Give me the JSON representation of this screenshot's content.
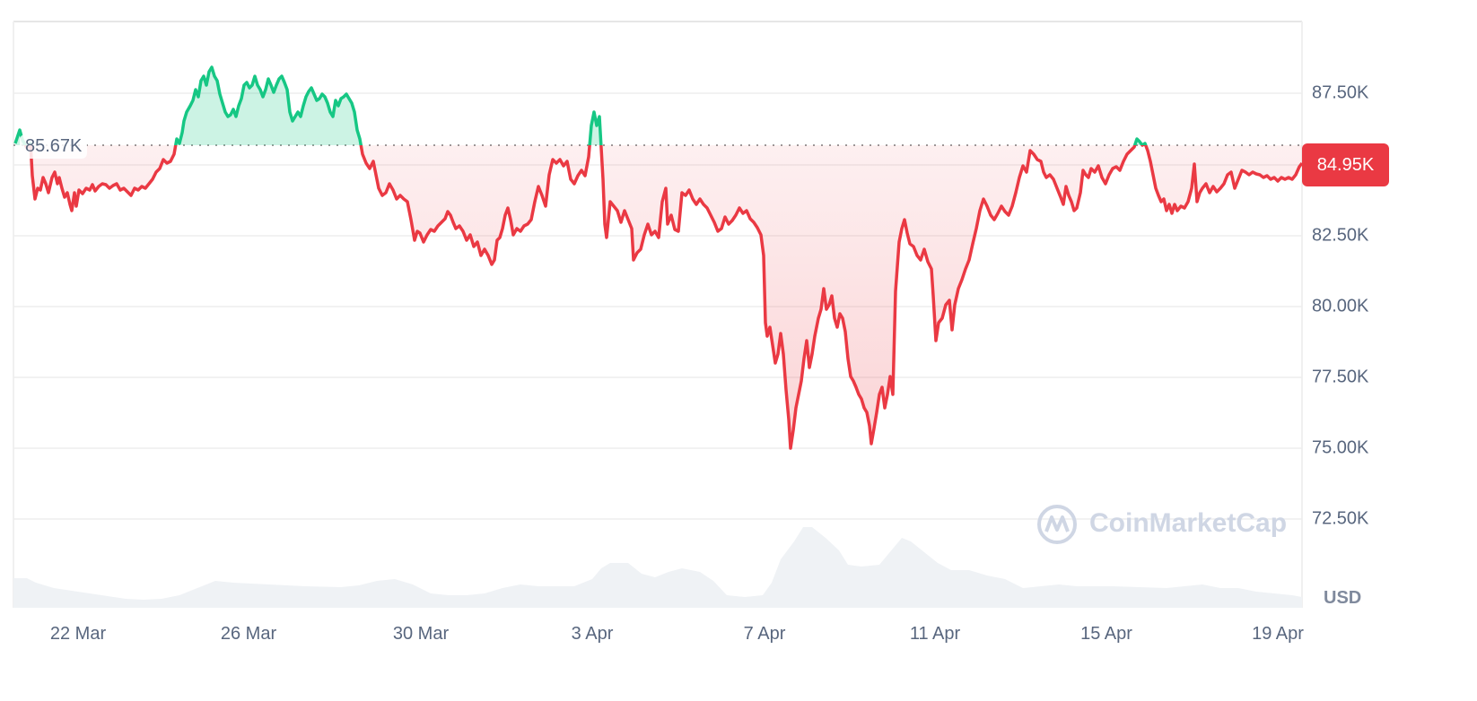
{
  "chart_data": {
    "type": "line",
    "title": "",
    "xlabel": "",
    "ylabel": "USD",
    "currency": "USD",
    "ylim": [
      71000,
      89500
    ],
    "y_ticks": [
      "87.50K",
      "82.50K",
      "80.00K",
      "77.50K",
      "75.00K",
      "72.50K"
    ],
    "x_ticks": [
      "22 Mar",
      "26 Mar",
      "30 Mar",
      "3 Apr",
      "7 Apr",
      "11 Apr",
      "15 Apr",
      "19 Apr"
    ],
    "baseline_value": 85670,
    "baseline_label": "85.67K",
    "current_value": 84950,
    "current_label": "84.95K",
    "grid": true,
    "legend": "none",
    "series": [
      {
        "name": "Price",
        "color_above": "#16c784",
        "color_below": "#ea3943",
        "points": [
          {
            "date": "20 Mar",
            "value": 85700
          },
          {
            "date": "21 Mar",
            "value": 84100
          },
          {
            "date": "22 Mar",
            "value": 84200
          },
          {
            "date": "23 Mar",
            "value": 84300
          },
          {
            "date": "24 Mar",
            "value": 85400
          },
          {
            "date": "25 Mar",
            "value": 87800
          },
          {
            "date": "26 Mar",
            "value": 87300
          },
          {
            "date": "27 Mar",
            "value": 87000
          },
          {
            "date": "28 Mar",
            "value": 86800
          },
          {
            "date": "29 Mar",
            "value": 83400
          },
          {
            "date": "30 Mar",
            "value": 82500
          },
          {
            "date": "31 Mar",
            "value": 82000
          },
          {
            "date": "1 Apr",
            "value": 83500
          },
          {
            "date": "2 Apr",
            "value": 85000
          },
          {
            "date": "3 Apr",
            "value": 83000
          },
          {
            "date": "4 Apr",
            "value": 84000
          },
          {
            "date": "5 Apr",
            "value": 83500
          },
          {
            "date": "6 Apr",
            "value": 83000
          },
          {
            "date": "7 Apr",
            "value": 78500
          },
          {
            "date": "8 Apr",
            "value": 77000
          },
          {
            "date": "9 Apr",
            "value": 76500
          },
          {
            "date": "10 Apr",
            "value": 81500
          },
          {
            "date": "11 Apr",
            "value": 79500
          },
          {
            "date": "12 Apr",
            "value": 83800
          },
          {
            "date": "13 Apr",
            "value": 85000
          },
          {
            "date": "14 Apr",
            "value": 84500
          },
          {
            "date": "15 Apr",
            "value": 85000
          },
          {
            "date": "16 Apr",
            "value": 84000
          },
          {
            "date": "17 Apr",
            "value": 84600
          },
          {
            "date": "18 Apr",
            "value": 84500
          },
          {
            "date": "19 Apr",
            "value": 84950
          }
        ]
      },
      {
        "name": "Volume",
        "color": "#eff2f5",
        "relative_values": [
          0.3,
          0.25,
          0.2,
          0.15,
          0.12,
          0.18,
          0.28,
          0.26,
          0.22,
          0.2,
          0.2,
          0.24,
          0.18,
          0.14,
          0.22,
          0.26,
          0.3,
          0.45,
          0.4,
          0.38,
          0.25,
          0.12,
          0.12,
          0.65,
          1.0,
          0.65,
          0.5,
          0.85,
          0.7,
          0.45,
          0.35,
          0.3,
          0.28,
          0.26,
          0.24,
          0.22,
          0.2,
          0.12
        ]
      }
    ]
  },
  "axis": {
    "y_labels": [
      "87.50K",
      "82.50K",
      "80.00K",
      "77.50K",
      "75.00K",
      "72.50K"
    ],
    "x_labels": [
      "22 Mar",
      "26 Mar",
      "30 Mar",
      "3 Apr",
      "7 Apr",
      "11 Apr",
      "15 Apr",
      "19 Apr"
    ],
    "currency": "USD"
  },
  "baseline": {
    "label": "85.67K"
  },
  "current_price": {
    "label": "84.95K",
    "color": "#ea3943"
  },
  "watermark": {
    "text": "CoinMarketCap"
  }
}
